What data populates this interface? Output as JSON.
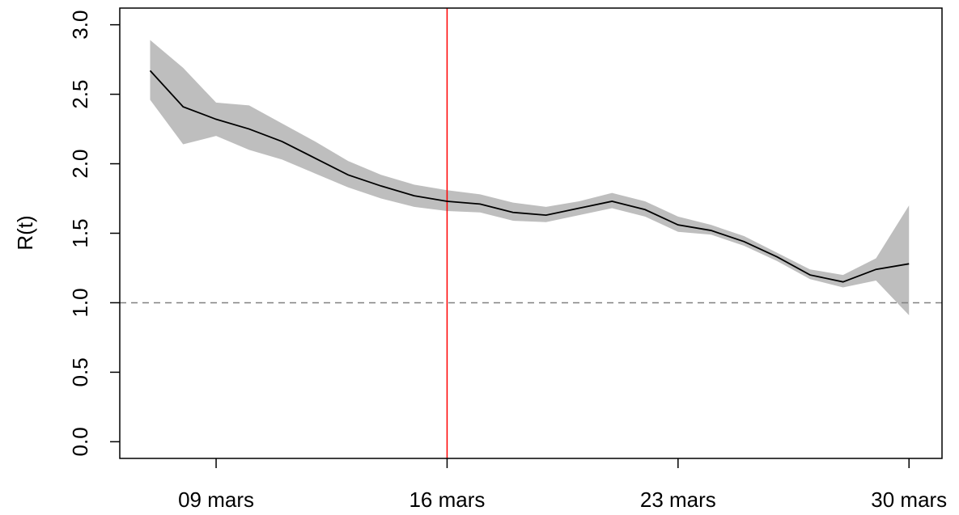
{
  "chart_data": {
    "type": "line",
    "ylabel": "R(t)",
    "xlabel": "",
    "x_dates": [
      "07 mars",
      "08 mars",
      "09 mars",
      "10 mars",
      "11 mars",
      "12 mars",
      "13 mars",
      "14 mars",
      "15 mars",
      "16 mars",
      "17 mars",
      "18 mars",
      "19 mars",
      "20 mars",
      "21 mars",
      "22 mars",
      "23 mars",
      "24 mars",
      "25 mars",
      "26 mars",
      "27 mars",
      "28 mars",
      "29 mars",
      "30 mars"
    ],
    "series": [
      {
        "values": [
          2.67,
          2.41,
          2.32,
          2.25,
          2.16,
          2.04,
          1.92,
          1.84,
          1.77,
          1.73,
          1.71,
          1.65,
          1.63,
          1.68,
          1.73,
          1.67,
          1.56,
          1.52,
          1.44,
          1.33,
          1.2,
          1.15,
          1.24,
          1.28
        ],
        "lower": [
          2.46,
          2.14,
          2.2,
          2.1,
          2.03,
          1.93,
          1.83,
          1.75,
          1.69,
          1.66,
          1.65,
          1.59,
          1.58,
          1.63,
          1.68,
          1.62,
          1.51,
          1.49,
          1.41,
          1.3,
          1.17,
          1.11,
          1.16,
          0.91
        ],
        "upper": [
          2.89,
          2.69,
          2.44,
          2.42,
          2.29,
          2.16,
          2.02,
          1.92,
          1.85,
          1.81,
          1.78,
          1.72,
          1.69,
          1.73,
          1.79,
          1.73,
          1.62,
          1.56,
          1.48,
          1.36,
          1.24,
          1.2,
          1.32,
          1.7
        ],
        "color": "#000000",
        "band_color": "#bebebe"
      }
    ],
    "x_ticks": [
      {
        "date": "09 mars",
        "label": "09 mars"
      },
      {
        "date": "16 mars",
        "label": "16 mars"
      },
      {
        "date": "23 mars",
        "label": "23 mars"
      },
      {
        "date": "30 mars",
        "label": "30 mars"
      }
    ],
    "y_ticks": [
      {
        "value": 0.0,
        "label": "0.0"
      },
      {
        "value": 0.5,
        "label": "0.5"
      },
      {
        "value": 1.0,
        "label": "1.0"
      },
      {
        "value": 1.5,
        "label": "1.5"
      },
      {
        "value": 2.0,
        "label": "2.0"
      },
      {
        "value": 2.5,
        "label": "2.5"
      },
      {
        "value": 3.0,
        "label": "3.0"
      }
    ],
    "ylim": [
      -0.12,
      3.12
    ],
    "xlim": [
      "06.08 mars",
      "31.0 mars"
    ],
    "reference_line": {
      "y": 1.0,
      "style": "dashed",
      "color": "#808080"
    },
    "vertical_marker": {
      "x": "16 mars",
      "color": "#ff0000"
    },
    "grid": false,
    "legend": "none"
  }
}
